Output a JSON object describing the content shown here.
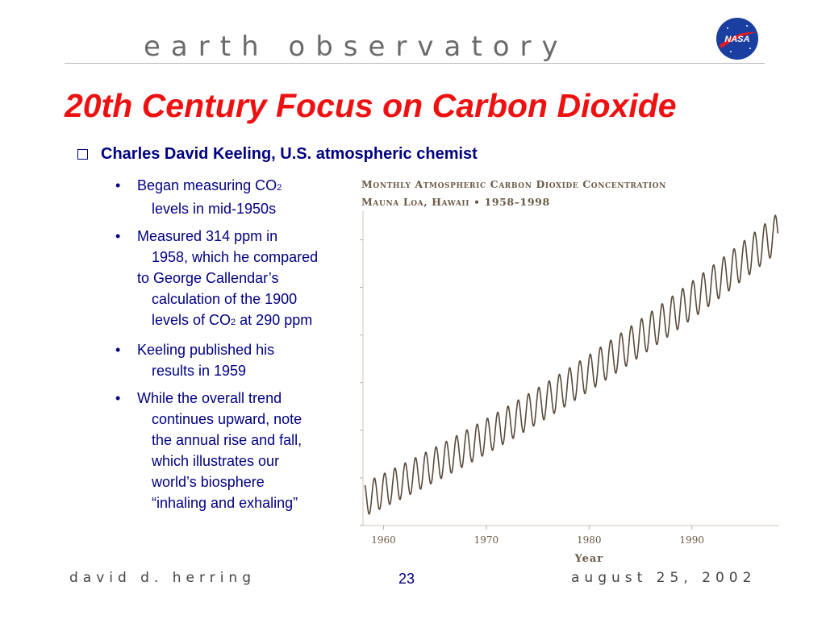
{
  "header": {
    "logo_text": "earth observatory",
    "nasa_logo": "NASA",
    "nasa_logo_icon": "nasa-meatball-logo"
  },
  "slide": {
    "title": "20th Century Focus on Carbon Dioxide",
    "main_bullet": "Charles David Keeling, U.S. atmospheric chemist",
    "sub_bullets": [
      {
        "lines": [
          "Began measuring CO",
          "2",
          "levels in mid-1950s"
        ]
      },
      {
        "lines": [
          "Measured 314 ppm in",
          "1958, which he compared",
          "to George Callendar’s",
          "calculation of the 1900",
          "levels of CO",
          "2",
          " at 290 ppm"
        ]
      },
      {
        "lines": [
          "Keeling published his",
          "results in 1959"
        ]
      },
      {
        "lines": [
          "While the overall trend",
          "continues upward, note",
          "the annual rise and fall,",
          "which illustrates our",
          "world’s  biosphere",
          "“inhaling and exhaling”"
        ]
      }
    ]
  },
  "chart_data": {
    "type": "line",
    "title": "Monthly Atmospheric Carbon Dioxide Concentration",
    "subtitle": "Mauna Loa, Hawaii • 1958–1998",
    "xlabel": "Year",
    "ylabel": "",
    "x_ticks": [
      "1960",
      "1970",
      "1980",
      "1990"
    ],
    "xlim": [
      1958,
      1998.5
    ],
    "ylim": [
      310,
      370
    ],
    "series": [
      {
        "x_start": 1958.2,
        "x_end": 1998.4,
        "trend_start": 315,
        "trend_end": 366,
        "seasonal_amplitude": 3.2
      }
    ],
    "line_color": "#5a4a3a"
  },
  "footer": {
    "author": "david d. herring",
    "page": "23",
    "date": "august 25, 2002"
  }
}
